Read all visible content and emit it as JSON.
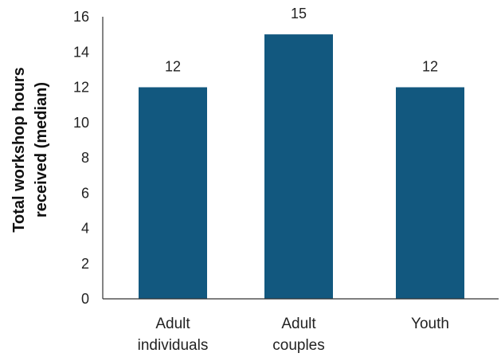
{
  "chart_data": {
    "type": "bar",
    "categories": [
      [
        "Adult",
        "individuals"
      ],
      [
        "Adult",
        "couples"
      ],
      [
        "Youth"
      ]
    ],
    "values": [
      12,
      15,
      12
    ],
    "data_labels": [
      "12",
      "15",
      "12"
    ],
    "ylabel": [
      "Total workshop hours",
      "received (median)"
    ],
    "ylim": [
      0,
      16
    ],
    "yticks": [
      "0",
      "2",
      "4",
      "6",
      "8",
      "10",
      "12",
      "14",
      "16"
    ],
    "bar_color": "#12587F",
    "grid": false,
    "legend": "none"
  }
}
